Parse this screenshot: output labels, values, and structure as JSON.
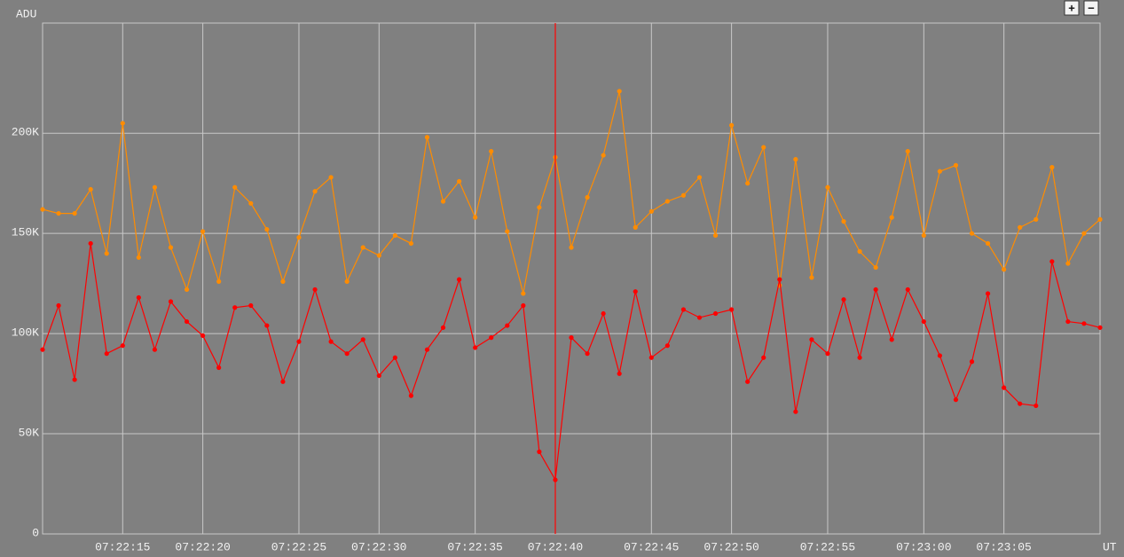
{
  "chart_data": {
    "type": "line",
    "y_label": "ADU",
    "x_label": "UT",
    "categories": [
      null,
      null,
      null,
      null,
      null,
      "07:22:15",
      null,
      null,
      null,
      null,
      "07:22:20",
      null,
      null,
      null,
      null,
      null,
      "07:22:25",
      null,
      null,
      null,
      null,
      "07:22:30",
      null,
      null,
      null,
      null,
      null,
      "07:22:35",
      null,
      null,
      null,
      null,
      "07:22:40",
      null,
      null,
      null,
      null,
      null,
      "07:22:45",
      null,
      null,
      null,
      null,
      "07:22:50",
      null,
      null,
      null,
      null,
      null,
      "07:22:55",
      null,
      null,
      null,
      null,
      null,
      "07:23:00",
      null,
      null,
      null,
      null,
      "07:23:05",
      null,
      null,
      null,
      null,
      null,
      null
    ],
    "series": [
      {
        "color": "#ff8c00",
        "values": [
          162000,
          160000,
          160000,
          172000,
          140000,
          205000,
          138000,
          173000,
          143000,
          122000,
          151000,
          126000,
          173000,
          165000,
          152000,
          126000,
          148000,
          171000,
          178000,
          126000,
          143000,
          139000,
          149000,
          145000,
          198000,
          166000,
          176000,
          158000,
          191000,
          151000,
          120000,
          163000,
          188000,
          143000,
          168000,
          189000,
          221000,
          153000,
          161000,
          166000,
          169000,
          178000,
          149000,
          204000,
          175000,
          193000,
          124000,
          187000,
          128000,
          173000,
          156000,
          141000,
          133000,
          158000,
          191000,
          149000,
          181000,
          184000,
          150000,
          145000,
          132000,
          153000,
          157000,
          183000,
          135000,
          150000,
          157000
        ]
      },
      {
        "color": "#ff0000",
        "values": [
          92000,
          114000,
          77000,
          145000,
          90000,
          94000,
          118000,
          92000,
          116000,
          106000,
          99000,
          83000,
          113000,
          114000,
          104000,
          76000,
          96000,
          122000,
          96000,
          90000,
          97000,
          79000,
          88000,
          69000,
          92000,
          103000,
          127000,
          93000,
          98000,
          104000,
          114000,
          41000,
          27000,
          98000,
          90000,
          110000,
          80000,
          121000,
          88000,
          94000,
          112000,
          108000,
          110000,
          112000,
          76000,
          88000,
          127000,
          61000,
          97000,
          90000,
          117000,
          88000,
          122000,
          97000,
          122000,
          106000,
          89000,
          67000,
          86000,
          120000,
          73000,
          65000,
          64000,
          136000,
          106000,
          105000,
          103000
        ]
      }
    ],
    "ylim": [
      0,
      255000
    ],
    "yticks": [
      0,
      {
        "value": 50000,
        "label": "50K"
      },
      {
        "value": 100000,
        "label": "100K"
      },
      {
        "value": 150000,
        "label": "150K"
      },
      {
        "value": 200000,
        "label": "200K"
      }
    ],
    "grid": true,
    "cursor": 32,
    "cursor_color": "#ff0000"
  },
  "controls": [
    "+",
    "−"
  ]
}
